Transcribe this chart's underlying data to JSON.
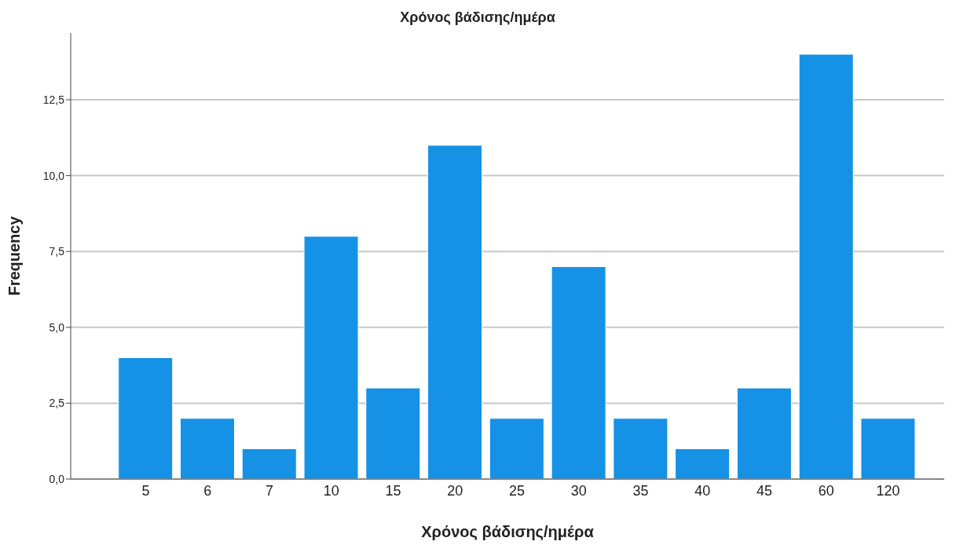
{
  "chart_data": {
    "type": "bar",
    "title": "Χρόνος βάδισης/ημέρα",
    "xlabel": "Χρόνος βάδισης/ημέρα",
    "ylabel": "Frequency",
    "categories": [
      "5",
      "6",
      "7",
      "10",
      "15",
      "20",
      "25",
      "30",
      "35",
      "40",
      "45",
      "60",
      "120"
    ],
    "values": [
      4,
      2,
      1,
      8,
      3,
      11,
      2,
      7,
      2,
      1,
      3,
      14,
      2
    ],
    "color": "#1591e6",
    "ylim": [
      0,
      14.7
    ],
    "yticks": [
      {
        "value": 0,
        "label": "0,0"
      },
      {
        "value": 2.5,
        "label": "2,5"
      },
      {
        "value": 5,
        "label": "5,0"
      },
      {
        "value": 7.5,
        "label": "7,5"
      },
      {
        "value": 10,
        "label": "10,0"
      },
      {
        "value": 12.5,
        "label": "12,5"
      }
    ],
    "grid": "y"
  }
}
